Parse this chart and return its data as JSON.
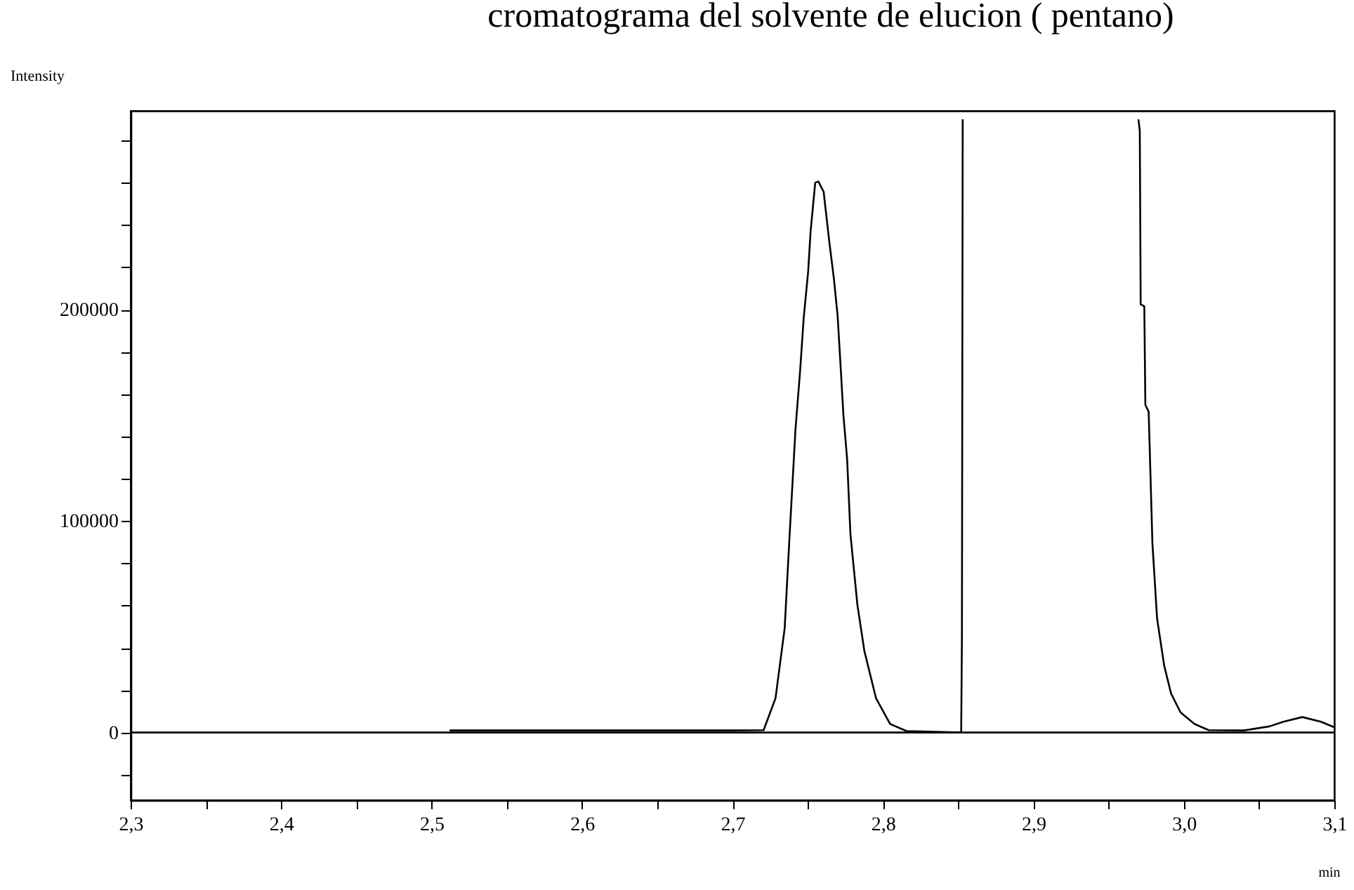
{
  "chart_data": {
    "type": "line",
    "title": "cromatograma del solvente de elucion ( pentano)",
    "xlabel": "min",
    "ylabel": "Intensity",
    "xlim": [
      2.3,
      3.1
    ],
    "ylim": [
      -32000,
      294000
    ],
    "xticks": [
      {
        "value": 2.3,
        "label": "2,3"
      },
      {
        "value": 2.35,
        "label": null
      },
      {
        "value": 2.4,
        "label": "2,4"
      },
      {
        "value": 2.45,
        "label": null
      },
      {
        "value": 2.5,
        "label": "2,5"
      },
      {
        "value": 2.55,
        "label": null
      },
      {
        "value": 2.6,
        "label": "2,6"
      },
      {
        "value": 2.65,
        "label": null
      },
      {
        "value": 2.7,
        "label": "2,7"
      },
      {
        "value": 2.75,
        "label": null
      },
      {
        "value": 2.8,
        "label": "2,8"
      },
      {
        "value": 2.85,
        "label": null
      },
      {
        "value": 2.9,
        "label": "2,9"
      },
      {
        "value": 2.95,
        "label": null
      },
      {
        "value": 3.0,
        "label": "3,0"
      },
      {
        "value": 3.05,
        "label": null
      },
      {
        "value": 3.1,
        "label": "3,1"
      }
    ],
    "yticks": [
      {
        "value": -20000,
        "label": null
      },
      0,
      {
        "value": 20000,
        "label": null
      },
      {
        "value": 40000,
        "label": null
      },
      {
        "value": 60000,
        "label": null
      },
      {
        "value": 80000,
        "label": null
      },
      100000,
      {
        "value": 120000,
        "label": null
      },
      {
        "value": 140000,
        "label": null
      },
      {
        "value": 160000,
        "label": null
      },
      {
        "value": 180000,
        "label": null
      },
      200000,
      {
        "value": 220000,
        "label": null
      },
      {
        "value": 240000,
        "label": null
      },
      {
        "value": 260000,
        "label": null
      },
      {
        "value": 280000,
        "label": null
      }
    ],
    "ref_lines": [
      {
        "axis": "y",
        "value": 0,
        "color": "#000000"
      }
    ],
    "series": [
      {
        "color": "#000000",
        "x": [
          2.512,
          2.6,
          2.7,
          2.7207,
          2.7286,
          2.7347,
          2.738,
          2.7419,
          2.745,
          2.7473,
          2.7503,
          2.7519,
          2.755,
          2.7571,
          2.7606,
          2.7643,
          2.7674,
          2.7699,
          2.772,
          2.7737,
          2.7762,
          2.7784,
          2.783,
          2.7877,
          2.7954,
          2.8048,
          2.8157,
          2.852,
          2.8525,
          2.853,
          2.91,
          2.9698,
          2.9707,
          2.9713,
          2.9737,
          2.9744,
          2.9766,
          2.9791,
          2.9822,
          2.9869,
          2.9915,
          2.9978,
          3.0071,
          3.0165,
          3.04,
          3.0569,
          3.0662,
          3.0787,
          3.0911,
          3.0998
        ],
        "values": [
          1000,
          1000,
          1000,
          1100,
          16200,
          49400,
          93800,
          143700,
          171500,
          195800,
          218000,
          236900,
          260100,
          260600,
          255700,
          232400,
          214700,
          196900,
          171500,
          150400,
          129300,
          93800,
          60500,
          38400,
          16200,
          4000,
          700,
          0,
          46000,
          290000,
          null,
          290000,
          284600,
          202500,
          201600,
          155000,
          151700,
          89400,
          53900,
          31700,
          18400,
          9500,
          4000,
          1100,
          1000,
          2900,
          5100,
          7300,
          5100,
          2500
        ]
      }
    ]
  }
}
